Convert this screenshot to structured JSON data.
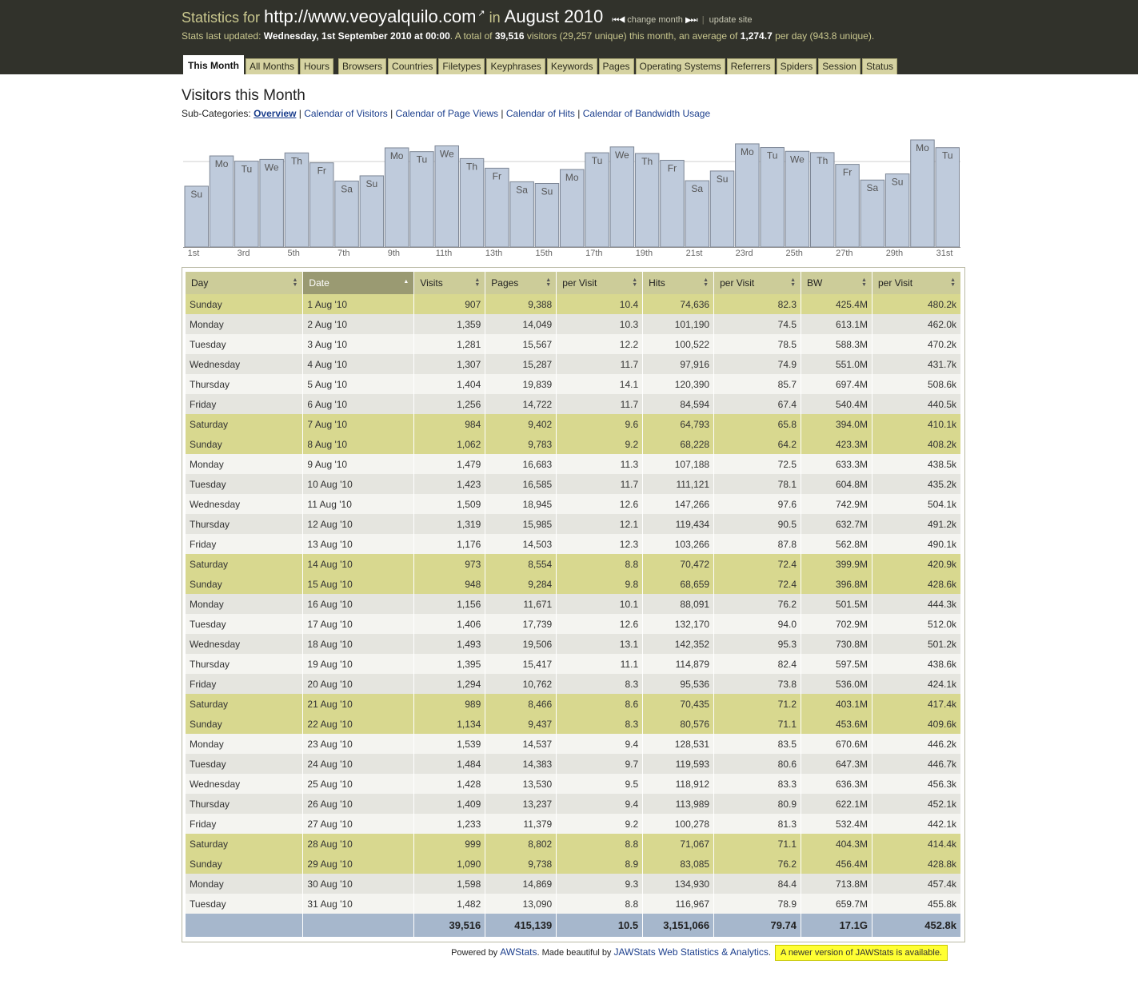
{
  "header": {
    "title_prefix": "Statistics for",
    "site_url": "http://www.veoyalquilo.com",
    "title_in": "in",
    "period": "August 2010",
    "change_month": "change month",
    "update_site": "update site",
    "updated_prefix": "Stats last updated:",
    "updated_value": "Wednesday, 1st September 2010 at 00:00",
    "total_prefix": ". A total of",
    "total_visitors": "39,516",
    "total_mid": "visitors (29,257 unique) this month, an average of",
    "avg_per_day": "1,274.7",
    "avg_suffix": "per day (943.8 unique)."
  },
  "tabs": [
    "This Month",
    "All Months",
    "Hours",
    "Browsers",
    "Countries",
    "Filetypes",
    "Keyphrases",
    "Keywords",
    "Pages",
    "Operating Systems",
    "Referrers",
    "Spiders",
    "Session",
    "Status"
  ],
  "page": {
    "title": "Visitors this Month",
    "subcats_label": "Sub-Categories:",
    "subcats": [
      "Overview",
      "Calendar of Visitors",
      "Calendar of Page Views",
      "Calendar of Hits",
      "Calendar of Bandwidth Usage"
    ]
  },
  "chart_data": {
    "type": "bar",
    "categories": [
      "1st",
      "2nd",
      "3rd",
      "4th",
      "5th",
      "6th",
      "7th",
      "8th",
      "9th",
      "10th",
      "11th",
      "12th",
      "13th",
      "14th",
      "15th",
      "16th",
      "17th",
      "18th",
      "19th",
      "20th",
      "21st",
      "22nd",
      "23rd",
      "24th",
      "25th",
      "26th",
      "27th",
      "28th",
      "29th",
      "30th",
      "31st"
    ],
    "tick_labels": [
      "1st",
      "",
      "3rd",
      "",
      "5th",
      "",
      "7th",
      "",
      "9th",
      "",
      "11th",
      "",
      "13th",
      "",
      "15th",
      "",
      "17th",
      "",
      "19th",
      "",
      "21st",
      "",
      "23rd",
      "",
      "25th",
      "",
      "27th",
      "",
      "29th",
      "",
      "31st"
    ],
    "day_labels": [
      "Su",
      "Mo",
      "Tu",
      "We",
      "Th",
      "Fr",
      "Sa",
      "Su",
      "Mo",
      "Tu",
      "We",
      "Th",
      "Fr",
      "Sa",
      "Su",
      "Mo",
      "Tu",
      "We",
      "Th",
      "Fr",
      "Sa",
      "Su",
      "Mo",
      "Tu",
      "We",
      "Th",
      "Fr",
      "Sa",
      "Su",
      "Mo",
      "Tu"
    ],
    "values": [
      907,
      1359,
      1281,
      1307,
      1404,
      1256,
      984,
      1062,
      1479,
      1423,
      1509,
      1319,
      1176,
      973,
      948,
      1156,
      1406,
      1493,
      1395,
      1294,
      989,
      1134,
      1539,
      1484,
      1428,
      1409,
      1233,
      999,
      1090,
      1598,
      1482
    ],
    "average": 1274.7,
    "ylim": [
      0,
      1598
    ],
    "colors": {
      "bar": "#bfcbdc",
      "bar_border": "#7c8594",
      "axis": "#888888"
    }
  },
  "table": {
    "headers": [
      "Day",
      "Date",
      "Visits",
      "Pages",
      "per Visit",
      "Hits",
      "per Visit",
      "BW",
      "per Visit"
    ],
    "rows": [
      [
        "Sunday",
        "1 Aug '10",
        "907",
        "9,388",
        "10.4",
        "74,636",
        "82.3",
        "425.4M",
        "480.2k"
      ],
      [
        "Monday",
        "2 Aug '10",
        "1,359",
        "14,049",
        "10.3",
        "101,190",
        "74.5",
        "613.1M",
        "462.0k"
      ],
      [
        "Tuesday",
        "3 Aug '10",
        "1,281",
        "15,567",
        "12.2",
        "100,522",
        "78.5",
        "588.3M",
        "470.2k"
      ],
      [
        "Wednesday",
        "4 Aug '10",
        "1,307",
        "15,287",
        "11.7",
        "97,916",
        "74.9",
        "551.0M",
        "431.7k"
      ],
      [
        "Thursday",
        "5 Aug '10",
        "1,404",
        "19,839",
        "14.1",
        "120,390",
        "85.7",
        "697.4M",
        "508.6k"
      ],
      [
        "Friday",
        "6 Aug '10",
        "1,256",
        "14,722",
        "11.7",
        "84,594",
        "67.4",
        "540.4M",
        "440.5k"
      ],
      [
        "Saturday",
        "7 Aug '10",
        "984",
        "9,402",
        "9.6",
        "64,793",
        "65.8",
        "394.0M",
        "410.1k"
      ],
      [
        "Sunday",
        "8 Aug '10",
        "1,062",
        "9,783",
        "9.2",
        "68,228",
        "64.2",
        "423.3M",
        "408.2k"
      ],
      [
        "Monday",
        "9 Aug '10",
        "1,479",
        "16,683",
        "11.3",
        "107,188",
        "72.5",
        "633.3M",
        "438.5k"
      ],
      [
        "Tuesday",
        "10 Aug '10",
        "1,423",
        "16,585",
        "11.7",
        "111,121",
        "78.1",
        "604.8M",
        "435.2k"
      ],
      [
        "Wednesday",
        "11 Aug '10",
        "1,509",
        "18,945",
        "12.6",
        "147,266",
        "97.6",
        "742.9M",
        "504.1k"
      ],
      [
        "Thursday",
        "12 Aug '10",
        "1,319",
        "15,985",
        "12.1",
        "119,434",
        "90.5",
        "632.7M",
        "491.2k"
      ],
      [
        "Friday",
        "13 Aug '10",
        "1,176",
        "14,503",
        "12.3",
        "103,266",
        "87.8",
        "562.8M",
        "490.1k"
      ],
      [
        "Saturday",
        "14 Aug '10",
        "973",
        "8,554",
        "8.8",
        "70,472",
        "72.4",
        "399.9M",
        "420.9k"
      ],
      [
        "Sunday",
        "15 Aug '10",
        "948",
        "9,284",
        "9.8",
        "68,659",
        "72.4",
        "396.8M",
        "428.6k"
      ],
      [
        "Monday",
        "16 Aug '10",
        "1,156",
        "11,671",
        "10.1",
        "88,091",
        "76.2",
        "501.5M",
        "444.3k"
      ],
      [
        "Tuesday",
        "17 Aug '10",
        "1,406",
        "17,739",
        "12.6",
        "132,170",
        "94.0",
        "702.9M",
        "512.0k"
      ],
      [
        "Wednesday",
        "18 Aug '10",
        "1,493",
        "19,506",
        "13.1",
        "142,352",
        "95.3",
        "730.8M",
        "501.2k"
      ],
      [
        "Thursday",
        "19 Aug '10",
        "1,395",
        "15,417",
        "11.1",
        "114,879",
        "82.4",
        "597.5M",
        "438.6k"
      ],
      [
        "Friday",
        "20 Aug '10",
        "1,294",
        "10,762",
        "8.3",
        "95,536",
        "73.8",
        "536.0M",
        "424.1k"
      ],
      [
        "Saturday",
        "21 Aug '10",
        "989",
        "8,466",
        "8.6",
        "70,435",
        "71.2",
        "403.1M",
        "417.4k"
      ],
      [
        "Sunday",
        "22 Aug '10",
        "1,134",
        "9,437",
        "8.3",
        "80,576",
        "71.1",
        "453.6M",
        "409.6k"
      ],
      [
        "Monday",
        "23 Aug '10",
        "1,539",
        "14,537",
        "9.4",
        "128,531",
        "83.5",
        "670.6M",
        "446.2k"
      ],
      [
        "Tuesday",
        "24 Aug '10",
        "1,484",
        "14,383",
        "9.7",
        "119,593",
        "80.6",
        "647.3M",
        "446.7k"
      ],
      [
        "Wednesday",
        "25 Aug '10",
        "1,428",
        "13,530",
        "9.5",
        "118,912",
        "83.3",
        "636.3M",
        "456.3k"
      ],
      [
        "Thursday",
        "26 Aug '10",
        "1,409",
        "13,237",
        "9.4",
        "113,989",
        "80.9",
        "622.1M",
        "452.1k"
      ],
      [
        "Friday",
        "27 Aug '10",
        "1,233",
        "11,379",
        "9.2",
        "100,278",
        "81.3",
        "532.4M",
        "442.1k"
      ],
      [
        "Saturday",
        "28 Aug '10",
        "999",
        "8,802",
        "8.8",
        "71,067",
        "71.1",
        "404.3M",
        "414.4k"
      ],
      [
        "Sunday",
        "29 Aug '10",
        "1,090",
        "9,738",
        "8.9",
        "83,085",
        "76.2",
        "456.4M",
        "428.8k"
      ],
      [
        "Monday",
        "30 Aug '10",
        "1,598",
        "14,869",
        "9.3",
        "134,930",
        "84.4",
        "713.8M",
        "457.4k"
      ],
      [
        "Tuesday",
        "31 Aug '10",
        "1,482",
        "13,090",
        "8.8",
        "116,967",
        "78.9",
        "659.7M",
        "455.8k"
      ]
    ],
    "totals": [
      "",
      "",
      "39,516",
      "415,139",
      "10.5",
      "3,151,066",
      "79.74",
      "17.1G",
      "452.8k"
    ]
  },
  "footer": {
    "powered_by": "Powered by",
    "awstats": "AWStats",
    "made_beautiful": ". Made beautiful by",
    "jawstats": "JAWStats Web Statistics & Analytics",
    "period_end": ".",
    "newer": "A newer version of JAWStats is available."
  }
}
